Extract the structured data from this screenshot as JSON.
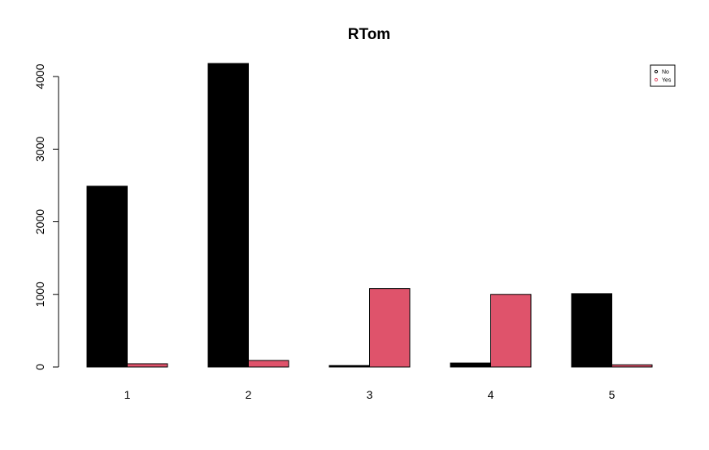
{
  "chart_data": {
    "type": "bar",
    "title": "RTom",
    "xlabel": "",
    "ylabel": "",
    "categories": [
      "1",
      "2",
      "3",
      "4",
      "5"
    ],
    "series": [
      {
        "name": "No",
        "color": "#000000",
        "values": [
          2490,
          4180,
          20,
          55,
          1010
        ]
      },
      {
        "name": "Yes",
        "color": "#df536b",
        "values": [
          45,
          90,
          1080,
          1000,
          30
        ]
      }
    ],
    "ylim": [
      0,
      4180
    ],
    "yticks": [
      "0",
      "1000",
      "2000",
      "3000",
      "4000"
    ],
    "grid": false,
    "legend_position": "top-right"
  }
}
